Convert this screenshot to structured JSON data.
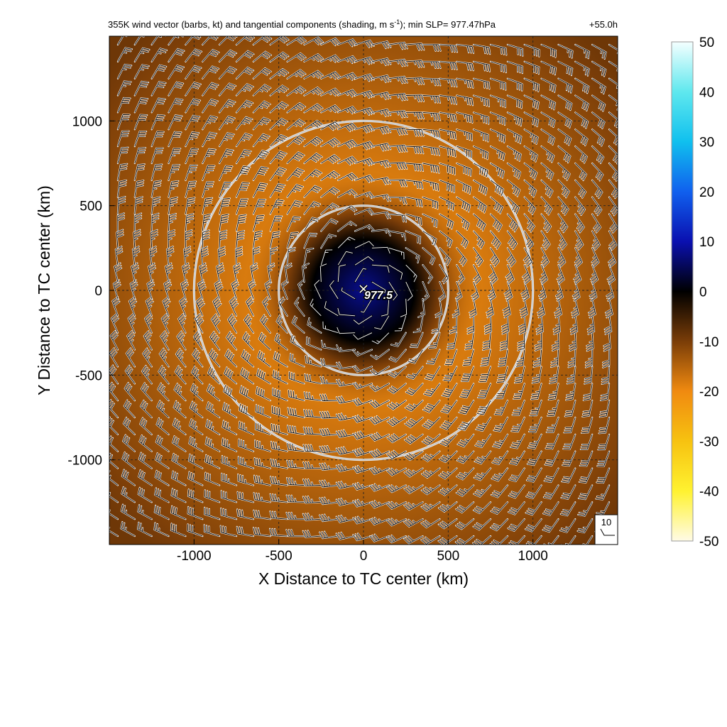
{
  "chart_data": {
    "type": "heatmap",
    "title_main": "355K wind vector (barbs, kt) and tangential components (shading, m s",
    "title_sup": "-1",
    "title_rest": "); min SLP= 977.47hPa",
    "forecast_hour": "+55.0h",
    "xlabel": "X Distance to TC center (km)",
    "ylabel": "Y Distance to TC center (km)",
    "xlim": [
      -1500,
      1500
    ],
    "ylim": [
      -1500,
      1500
    ],
    "xticks": [
      -1000,
      -500,
      0,
      500,
      1000
    ],
    "yticks": [
      -1000,
      -500,
      0,
      500,
      1000
    ],
    "grid": "dashed",
    "colorbar": {
      "ticks": [
        50,
        40,
        30,
        20,
        10,
        0,
        -10,
        -20,
        -30,
        -40,
        -50
      ],
      "range": [
        -50,
        50
      ],
      "stops": [
        {
          "value": 50,
          "color": "#f4ffff"
        },
        {
          "value": 40,
          "color": "#5fe8ee"
        },
        {
          "value": 30,
          "color": "#10c0ee"
        },
        {
          "value": 20,
          "color": "#1060ee"
        },
        {
          "value": 10,
          "color": "#0a10b0"
        },
        {
          "value": 0,
          "color": "#000000"
        },
        {
          "value": -10,
          "color": "#7a3d08"
        },
        {
          "value": -20,
          "color": "#f08a10"
        },
        {
          "value": -30,
          "color": "#f7c210"
        },
        {
          "value": -40,
          "color": "#fff230"
        },
        {
          "value": -50,
          "color": "#fffbe6"
        }
      ]
    },
    "field": {
      "center_value": 8,
      "core_radius_km": 300,
      "max_wind_radius_km": 700,
      "max_value": -18,
      "outer_value": -9,
      "outer_radius_km": 2000
    },
    "range_rings_km": [
      500,
      1000
    ],
    "center_marker": {
      "label": "977.5",
      "x": 0,
      "y": 0
    },
    "barbs": {
      "spacing_km": 100,
      "reference_label": "10",
      "speed_max_kt": 40,
      "speed_peak_radius_km": 800
    }
  }
}
